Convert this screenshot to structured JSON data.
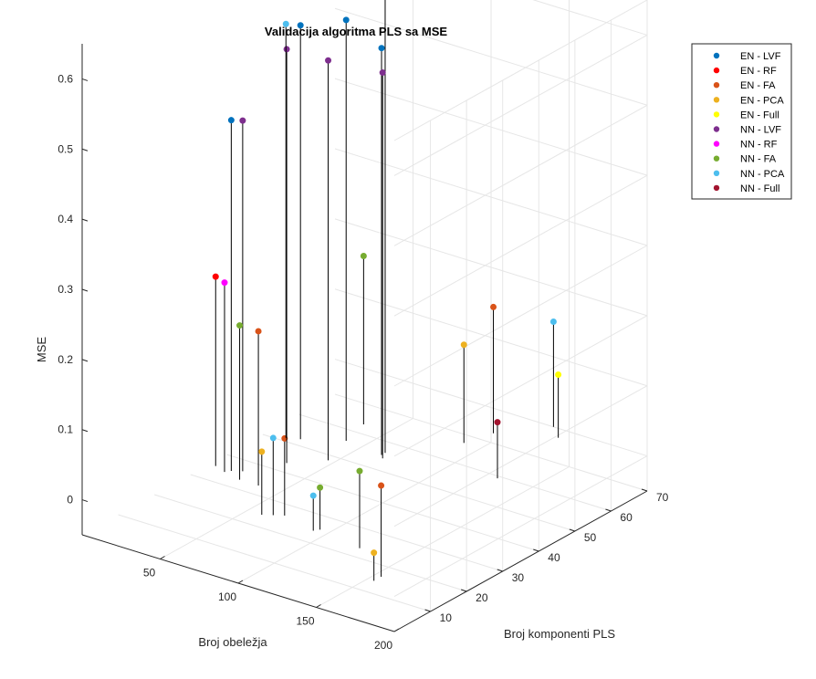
{
  "chart_data": {
    "type": "scatter",
    "subtype": "3d-stem",
    "title": "Validacija algoritma PLS sa MSE",
    "xlabel": "Broj obeležja",
    "ylabel": "Broj komponenti PLS",
    "zlabel": "MSE",
    "xlim": [
      0,
      200
    ],
    "ylim": [
      0,
      70
    ],
    "zlim": [
      -0.05,
      0.65
    ],
    "xticks": [
      "50",
      "100",
      "150",
      "200"
    ],
    "yticks": [
      "10",
      "20",
      "30",
      "40",
      "50",
      "60",
      "70"
    ],
    "zticks": [
      "0",
      "0.1",
      "0.2",
      "0.3",
      "0.4",
      "0.5",
      "0.6"
    ],
    "grid": true,
    "legend_position": "right-top",
    "series": [
      {
        "name": "EN - LVF",
        "color": "#0072BD",
        "points": [
          [
            40,
            24,
            0.5
          ],
          [
            45,
            41,
            0.59
          ],
          [
            90,
            44,
            0.58
          ],
          [
            65,
            45,
            0.6
          ]
        ]
      },
      {
        "name": "EN - RF",
        "color": "#FF0000",
        "points": [
          [
            30,
            24,
            0.27
          ]
        ]
      },
      {
        "name": "EN - FA",
        "color": "#D95319",
        "points": [
          [
            62,
            22,
            0.22
          ],
          [
            95,
            15,
            0.11
          ],
          [
            180,
            5,
            0.13
          ],
          [
            120,
            62,
            0.18
          ]
        ]
      },
      {
        "name": "EN - PCA",
        "color": "#EDB120",
        "points": [
          [
            85,
            13,
            0.09
          ],
          [
            90,
            45,
            0.75
          ],
          [
            180,
            3,
            0.04
          ],
          [
            115,
            56,
            0.14
          ]
        ]
      },
      {
        "name": "EN - Full",
        "color": "#FFFF00",
        "points": [
          [
            150,
            67,
            0.09
          ]
        ]
      },
      {
        "name": "NN - LVF",
        "color": "#7E2F8E",
        "points": [
          [
            45,
            25,
            0.5
          ],
          [
            57,
            32,
            0.59
          ],
          [
            72,
            37,
            0.57
          ],
          [
            93,
            43,
            0.55
          ]
        ]
      },
      {
        "name": "NN - RF",
        "color": "#FF00FF",
        "points": [
          [
            38,
            23,
            0.27
          ]
        ]
      },
      {
        "name": "NN - FA",
        "color": "#77AC30",
        "points": [
          [
            50,
            22,
            0.22
          ],
          [
            120,
            14,
            0.06
          ],
          [
            60,
            52,
            0.24
          ],
          [
            150,
            12,
            0.11
          ]
        ]
      },
      {
        "name": "NN - PCA",
        "color": "#4DBEEE",
        "points": [
          [
            38,
            40,
            0.59
          ],
          [
            90,
            14,
            0.11
          ],
          [
            118,
            13,
            0.05
          ],
          [
            140,
            70,
            0.15
          ]
        ]
      },
      {
        "name": "NN - Full",
        "color": "#A2142F",
        "points": [
          [
            155,
            48,
            0.08
          ]
        ]
      }
    ]
  }
}
